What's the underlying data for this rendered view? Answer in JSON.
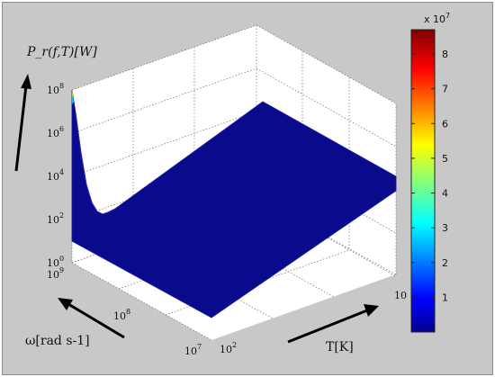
{
  "chart_data": {
    "type": "surface3d",
    "z_label": "P_r(f,T)[W]",
    "x_label": "ω[rad s-1]",
    "y_label": "T[K]",
    "z_scale": "log",
    "z_ticks": [
      {
        "base": "10",
        "exp": "0"
      },
      {
        "base": "10",
        "exp": "2"
      },
      {
        "base": "10",
        "exp": "4"
      },
      {
        "base": "10",
        "exp": "6"
      },
      {
        "base": "10",
        "exp": "8"
      }
    ],
    "omega_ticks": [
      {
        "base": "10",
        "exp": "9"
      },
      {
        "base": "10",
        "exp": "8"
      },
      {
        "base": "10",
        "exp": "7"
      }
    ],
    "T_ticks": [
      {
        "label": "10",
        "exp": "2"
      },
      {
        "label": "10",
        "exp": ""
      }
    ],
    "colorbar": {
      "multiplier_base": "x 10",
      "multiplier_exp": "7",
      "ticks": [
        "1",
        "2",
        "3",
        "4",
        "5",
        "6",
        "7",
        "8"
      ],
      "range": [
        0,
        8.7
      ],
      "colormap": "jet"
    },
    "surface_color": "#0a0a8c",
    "grid": true
  }
}
